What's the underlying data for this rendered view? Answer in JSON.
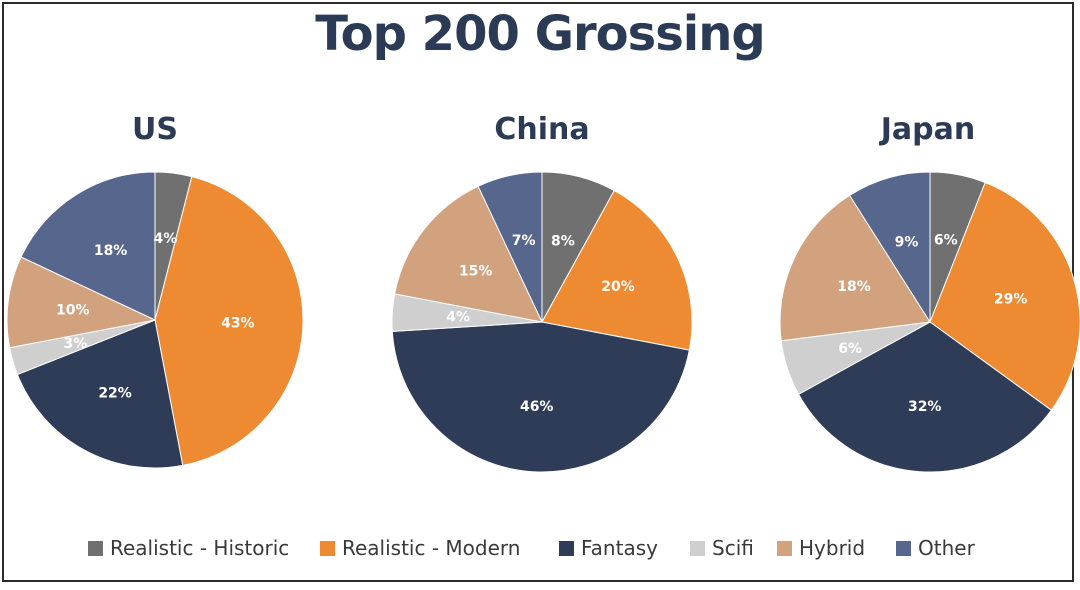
{
  "title": "Top 200 Grossing",
  "chart_data": [
    {
      "type": "pie",
      "title": "US",
      "categories": [
        "Realistic - Historic",
        "Realistic - Modern",
        "Fantasy",
        "Scifi",
        "Hybrid",
        "Other"
      ],
      "values": [
        4,
        43,
        22,
        3,
        10,
        18
      ],
      "labels": [
        "4%",
        "43%",
        "22%",
        "3%",
        "10%",
        "18%"
      ]
    },
    {
      "type": "pie",
      "title": "China",
      "categories": [
        "Realistic - Historic",
        "Realistic - Modern",
        "Fantasy",
        "Scifi",
        "Hybrid",
        "Other"
      ],
      "values": [
        8,
        20,
        46,
        4,
        15,
        7
      ],
      "labels": [
        "8%",
        "20%",
        "46%",
        "4%",
        "15%",
        "7%"
      ]
    },
    {
      "type": "pie",
      "title": "Japan",
      "categories": [
        "Realistic - Historic",
        "Realistic - Modern",
        "Fantasy",
        "Scifi",
        "Hybrid",
        "Other"
      ],
      "values": [
        6,
        29,
        32,
        6,
        18,
        9
      ],
      "labels": [
        "6%",
        "29%",
        "32%",
        "6%",
        "18%",
        "9%"
      ]
    }
  ],
  "legend": {
    "position": "bottom",
    "items": [
      {
        "label": "Realistic - Historic",
        "color": "#707070"
      },
      {
        "label": "Realistic - Modern",
        "color": "#ee8a31"
      },
      {
        "label": "Fantasy",
        "color": "#2e3c57"
      },
      {
        "label": "Scifi",
        "color": "#cfcfcf"
      },
      {
        "label": "Hybrid",
        "color": "#d2a27f"
      },
      {
        "label": "Other",
        "color": "#56668c"
      }
    ]
  }
}
